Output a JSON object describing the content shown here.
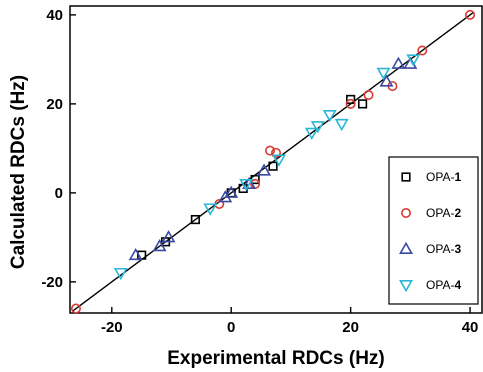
{
  "chart_data": {
    "type": "scatter",
    "title": "",
    "xlabel": "Experimental RDCs (Hz)",
    "ylabel": "Calculated RDCs (Hz)",
    "xlim": [
      -27,
      42
    ],
    "ylim": [
      -27,
      42
    ],
    "xticks": [
      -20,
      0,
      20,
      40
    ],
    "yticks": [
      -20,
      0,
      20,
      40
    ],
    "xtick_labels": [
      "-20",
      "0",
      "20",
      "40"
    ],
    "ytick_labels": [
      "-20",
      "0",
      "20",
      "40"
    ],
    "grid": false,
    "legend_position": "right",
    "fit_line": {
      "x": [
        -26.5,
        40.5
      ],
      "y": [
        -26.5,
        40.5
      ]
    },
    "series": [
      {
        "name": "OPA-1",
        "label_prefix": "OPA-",
        "label_number": "1",
        "marker": "square",
        "color": "#000000",
        "x": [
          -15,
          -11,
          -6,
          0,
          2,
          4,
          7,
          20,
          22
        ],
        "y": [
          -14,
          -11,
          -6,
          0,
          1,
          3,
          6,
          21,
          20
        ]
      },
      {
        "name": "OPA-2",
        "label_prefix": "OPA-",
        "label_number": "2",
        "marker": "circle",
        "color": "#d93a32",
        "x": [
          -26,
          -2,
          4,
          6.5,
          7.5,
          20,
          23,
          27,
          32,
          40
        ],
        "y": [
          -26,
          -2.5,
          2,
          9.5,
          9,
          20,
          22,
          24,
          32,
          40
        ]
      },
      {
        "name": "OPA-3",
        "label_prefix": "OPA-",
        "label_number": "3",
        "marker": "triangle-up",
        "color": "#3a4aa3",
        "x": [
          -16,
          -12,
          -10.5,
          -1,
          0,
          3,
          5.5,
          26,
          28,
          30
        ],
        "y": [
          -14,
          -12,
          -10,
          -1,
          0,
          2,
          5,
          25,
          29,
          29
        ]
      },
      {
        "name": "OPA-4",
        "label_prefix": "OPA-",
        "label_number": "4",
        "marker": "triangle-down",
        "color": "#29b7d6",
        "x": [
          -18.5,
          -3.5,
          2.5,
          8,
          13.5,
          14.5,
          16.5,
          18.5,
          25.5,
          30.5
        ],
        "y": [
          -18,
          -3.5,
          2,
          7.5,
          13.5,
          15,
          17.5,
          15.5,
          27,
          30
        ]
      }
    ]
  }
}
